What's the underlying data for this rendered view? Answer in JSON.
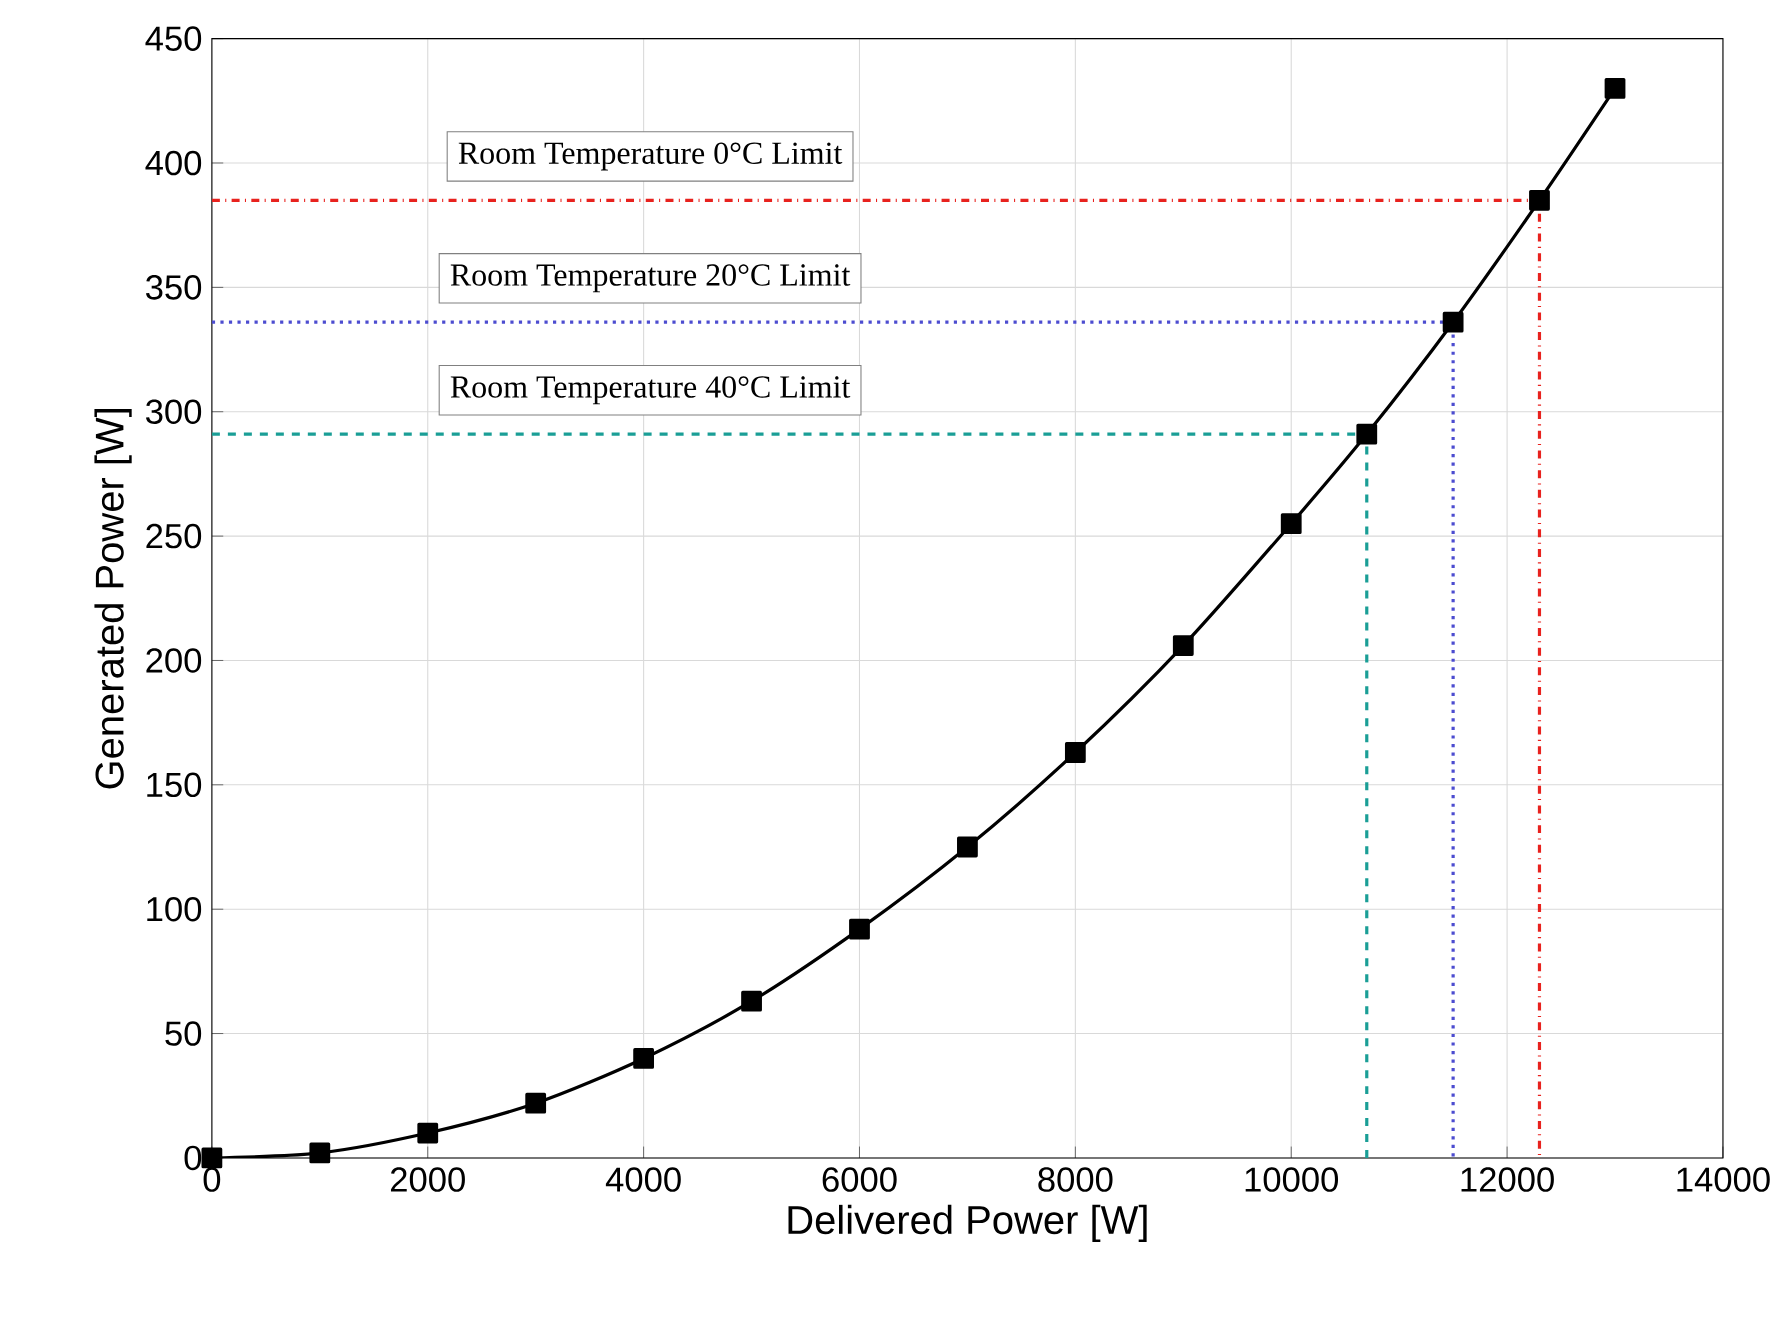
{
  "chart_data": {
    "type": "line",
    "xlabel": "Delivered Power [W]",
    "ylabel": "Generated Power [W]",
    "xlim": [
      0,
      14000
    ],
    "ylim": [
      0,
      450
    ],
    "xticks": [
      0,
      2000,
      4000,
      6000,
      8000,
      10000,
      12000,
      14000
    ],
    "yticks": [
      0,
      50,
      100,
      150,
      200,
      250,
      300,
      350,
      400,
      450
    ],
    "grid": true,
    "series": [
      {
        "color": "#000000",
        "marker": "square",
        "line_style": "solid",
        "x": [
          0,
          1000,
          2000,
          3000,
          4000,
          5000,
          6000,
          7000,
          8000,
          9000,
          10000,
          10700,
          11500,
          12300,
          13000
        ],
        "values": [
          0,
          2,
          10,
          22,
          40,
          63,
          92,
          125,
          163,
          206,
          255,
          291,
          336,
          385,
          430
        ]
      },
      {
        "color": "#1a9e96",
        "marker": "none",
        "line_style": "dashed",
        "x": [
          0,
          10700,
          10700
        ],
        "values": [
          291,
          291,
          0
        ]
      },
      {
        "color": "#4c4cd0",
        "marker": "none",
        "line_style": "dotted",
        "x": [
          0,
          11500,
          11500
        ],
        "values": [
          336,
          336,
          0
        ]
      },
      {
        "color": "#e8221e",
        "marker": "none",
        "line_style": "dashdot",
        "x": [
          0,
          12300,
          12300
        ],
        "values": [
          385,
          385,
          0
        ]
      }
    ],
    "annotations": [
      "Room Temperature 0°C Limit",
      "Room Temperature 20°C Limit",
      "Room Temperature 40°C Limit"
    ]
  }
}
